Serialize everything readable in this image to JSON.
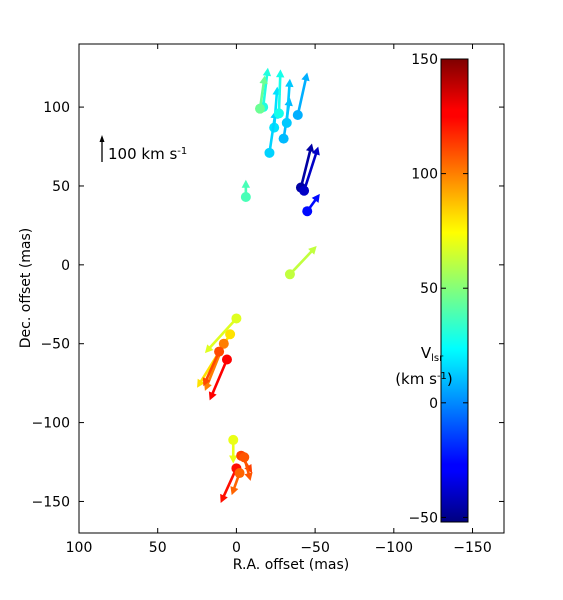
{
  "chart_data": {
    "type": "scatter",
    "title": "",
    "xlabel": "R.A. offset (mas)",
    "ylabel": "Dec. offset (mas)",
    "xlim": [
      100,
      -170
    ],
    "ylim": [
      -170,
      140
    ],
    "x_reversed": true,
    "xticks": [
      100,
      50,
      0,
      -50,
      -100,
      -150
    ],
    "xtick_labels": [
      "100",
      "50",
      "0",
      "−50",
      "−100",
      "−150"
    ],
    "yticks": [
      100,
      50,
      0,
      -50,
      -100,
      -150
    ],
    "ytick_labels": [
      "100",
      "50",
      "0",
      "−50",
      "−100",
      "−150"
    ],
    "scale_arrow": {
      "label": "100 km s",
      "label_sup": "-1",
      "value_kms": 100
    },
    "colorbar": {
      "label_line1": "V",
      "label_sub": "lsr",
      "label_line2": "(km s",
      "label_line2_sup": "-1",
      "label_line2_end": ")",
      "min": -52,
      "max": 150,
      "ticks": [
        150,
        100,
        50,
        0,
        -50
      ],
      "tick_labels": [
        "150",
        "100",
        "50",
        "0",
        "−50"
      ],
      "colormap": "jet"
    },
    "points": [
      {
        "x": -39,
        "y": 95,
        "dx": -6,
        "dy": 27,
        "v": 8
      },
      {
        "x": -30,
        "y": 80,
        "dx": -4,
        "dy": 26,
        "v": 10
      },
      {
        "x": -32,
        "y": 90,
        "dx": -2,
        "dy": 28,
        "v": 13
      },
      {
        "x": -24,
        "y": 87,
        "dx": -2,
        "dy": 26,
        "v": 18
      },
      {
        "x": -21,
        "y": 71,
        "dx": -4,
        "dy": 27,
        "v": 15
      },
      {
        "x": -27,
        "y": 96,
        "dx": -1,
        "dy": 28,
        "v": 28
      },
      {
        "x": -17,
        "y": 100,
        "dx": -3,
        "dy": 25,
        "v": 30
      },
      {
        "x": -15,
        "y": 99,
        "dx": -3,
        "dy": 21,
        "v": 45
      },
      {
        "x": -6,
        "y": 43,
        "dx": 0,
        "dy": 11,
        "v": 38
      },
      {
        "x": -41,
        "y": 49,
        "dx": -7,
        "dy": 28,
        "v": -45
      },
      {
        "x": -43,
        "y": 47,
        "dx": -9,
        "dy": 28,
        "v": -38
      },
      {
        "x": -45,
        "y": 34,
        "dx": -8,
        "dy": 11,
        "v": -25
      },
      {
        "x": -34,
        "y": -6,
        "dx": -17,
        "dy": 18,
        "v": 62
      },
      {
        "x": 0,
        "y": -34,
        "dx": 20,
        "dy": -22,
        "v": 68
      },
      {
        "x": 4,
        "y": -44,
        "dx": 21,
        "dy": -34,
        "v": 80
      },
      {
        "x": 8,
        "y": -50,
        "dx": 12,
        "dy": -30,
        "v": 100
      },
      {
        "x": 11,
        "y": -55,
        "dx": 10,
        "dy": -22,
        "v": 110
      },
      {
        "x": 6,
        "y": -60,
        "dx": 11,
        "dy": -26,
        "v": 125
      },
      {
        "x": 2,
        "y": -111,
        "dx": 0,
        "dy": -15,
        "v": 70
      },
      {
        "x": -3,
        "y": -121,
        "dx": -7,
        "dy": -11,
        "v": 112
      },
      {
        "x": -5,
        "y": -122,
        "dx": -4,
        "dy": -15,
        "v": 108
      },
      {
        "x": 0,
        "y": -129,
        "dx": 10,
        "dy": -22,
        "v": 122
      },
      {
        "x": -2,
        "y": -132,
        "dx": 5,
        "dy": -14,
        "v": 105
      }
    ]
  }
}
